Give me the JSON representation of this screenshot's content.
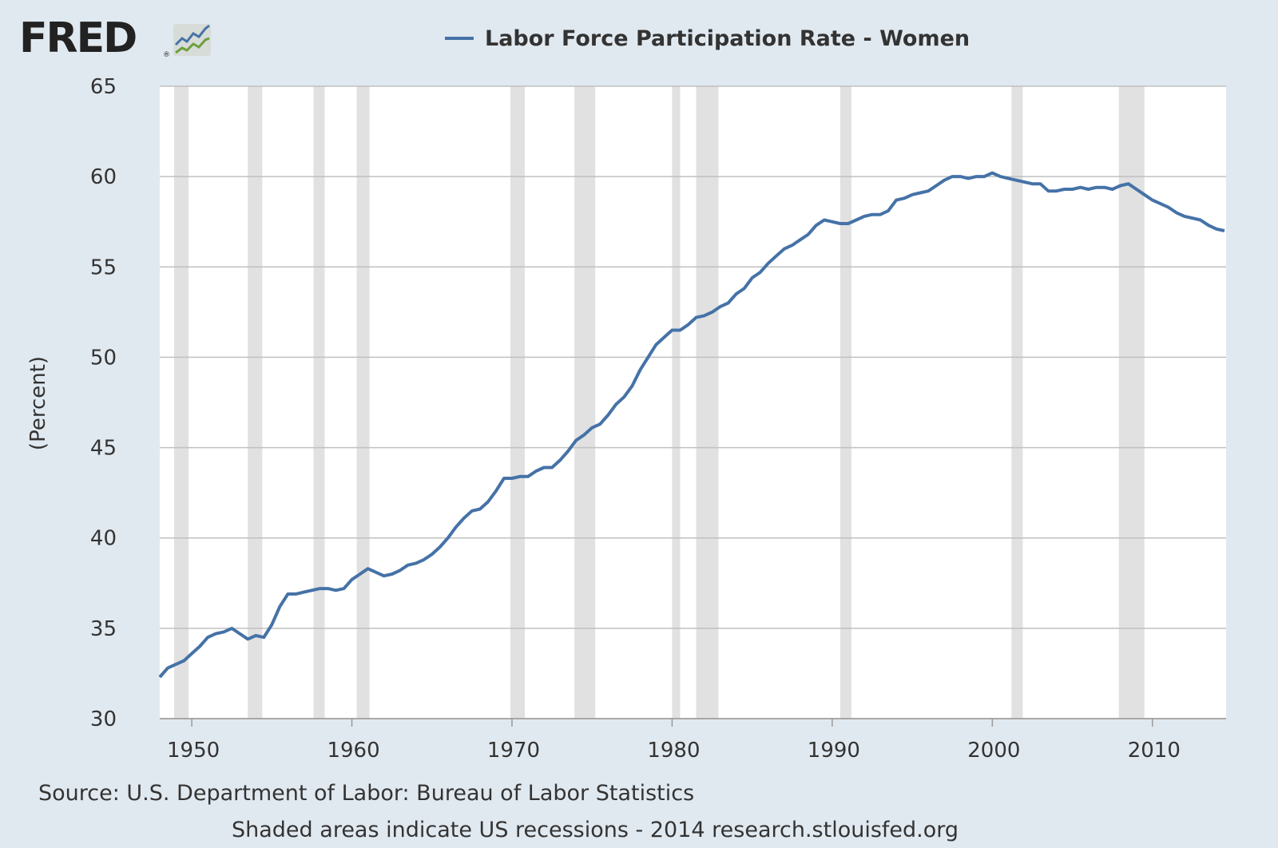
{
  "logo": {
    "text": "FRED",
    "reg": "®"
  },
  "colors": {
    "background": "#e1e9f0",
    "plot_background": "#ffffff",
    "series": "#4572a7",
    "recession": "#e1e1e1",
    "grid": "#c0c0c0",
    "text": "#333333"
  },
  "footer": {
    "source": "Source: U.S. Department of Labor: Bureau of Labor Statistics",
    "note": "Shaded areas indicate US recessions - 2014 research.stlouisfed.org"
  },
  "chart_data": {
    "type": "line",
    "title": "",
    "xlabel": "",
    "ylabel": "(Percent)",
    "xlim": [
      1948.0,
      2014.6
    ],
    "ylim": [
      30,
      65
    ],
    "y_ticks": [
      "30",
      "35",
      "40",
      "45",
      "50",
      "55",
      "60",
      "65"
    ],
    "x_ticks": [
      "1950",
      "1960",
      "1970",
      "1980",
      "1990",
      "2000",
      "2010"
    ],
    "grid": true,
    "legend_placement": "top-center",
    "recessions": [
      [
        1948.9,
        1949.8
      ],
      [
        1953.5,
        1954.4
      ],
      [
        1957.6,
        1958.3
      ],
      [
        1960.3,
        1961.1
      ],
      [
        1969.9,
        1970.8
      ],
      [
        1973.9,
        1975.2
      ],
      [
        1980.0,
        1980.5
      ],
      [
        1981.5,
        1982.9
      ],
      [
        1990.5,
        1991.2
      ],
      [
        2001.2,
        2001.9
      ],
      [
        2007.9,
        2009.5
      ]
    ],
    "series": [
      {
        "name": "Labor Force Participation Rate - Women",
        "x": [
          1948.0,
          1948.5,
          1949.0,
          1949.5,
          1950.0,
          1950.5,
          1951.0,
          1951.5,
          1952.0,
          1952.5,
          1953.0,
          1953.5,
          1954.0,
          1954.5,
          1955.0,
          1955.5,
          1956.0,
          1956.5,
          1957.0,
          1957.5,
          1958.0,
          1958.5,
          1959.0,
          1959.5,
          1960.0,
          1960.5,
          1961.0,
          1961.5,
          1962.0,
          1962.5,
          1963.0,
          1963.5,
          1964.0,
          1964.5,
          1965.0,
          1965.5,
          1966.0,
          1966.5,
          1967.0,
          1967.5,
          1968.0,
          1968.5,
          1969.0,
          1969.5,
          1970.0,
          1970.5,
          1971.0,
          1971.5,
          1972.0,
          1972.5,
          1973.0,
          1973.5,
          1974.0,
          1974.5,
          1975.0,
          1975.5,
          1976.0,
          1976.5,
          1977.0,
          1977.5,
          1978.0,
          1978.5,
          1979.0,
          1979.5,
          1980.0,
          1980.5,
          1981.0,
          1981.5,
          1982.0,
          1982.5,
          1983.0,
          1983.5,
          1984.0,
          1984.5,
          1985.0,
          1985.5,
          1986.0,
          1986.5,
          1987.0,
          1987.5,
          1988.0,
          1988.5,
          1989.0,
          1989.5,
          1990.0,
          1990.5,
          1991.0,
          1991.5,
          1992.0,
          1992.5,
          1993.0,
          1993.5,
          1994.0,
          1994.5,
          1995.0,
          1995.5,
          1996.0,
          1996.5,
          1997.0,
          1997.5,
          1998.0,
          1998.5,
          1999.0,
          1999.5,
          2000.0,
          2000.5,
          2001.0,
          2001.5,
          2002.0,
          2002.5,
          2003.0,
          2003.5,
          2004.0,
          2004.5,
          2005.0,
          2005.5,
          2006.0,
          2006.5,
          2007.0,
          2007.5,
          2008.0,
          2008.5,
          2009.0,
          2009.5,
          2010.0,
          2010.5,
          2011.0,
          2011.5,
          2012.0,
          2012.5,
          2013.0,
          2013.5,
          2014.0,
          2014.5
        ],
        "values": [
          32.3,
          32.8,
          33.0,
          33.2,
          33.6,
          34.0,
          34.5,
          34.7,
          34.8,
          35.0,
          34.7,
          34.4,
          34.6,
          34.5,
          35.2,
          36.2,
          36.9,
          36.9,
          37.0,
          37.1,
          37.2,
          37.2,
          37.1,
          37.2,
          37.7,
          38.0,
          38.3,
          38.1,
          37.9,
          38.0,
          38.2,
          38.5,
          38.6,
          38.8,
          39.1,
          39.5,
          40.0,
          40.6,
          41.1,
          41.5,
          41.6,
          42.0,
          42.6,
          43.3,
          43.3,
          43.4,
          43.4,
          43.7,
          43.9,
          43.9,
          44.3,
          44.8,
          45.4,
          45.7,
          46.1,
          46.3,
          46.8,
          47.4,
          47.8,
          48.4,
          49.3,
          50.0,
          50.7,
          51.1,
          51.5,
          51.5,
          51.8,
          52.2,
          52.3,
          52.5,
          52.8,
          53.0,
          53.5,
          53.8,
          54.4,
          54.7,
          55.2,
          55.6,
          56.0,
          56.2,
          56.5,
          56.8,
          57.3,
          57.6,
          57.5,
          57.4,
          57.4,
          57.6,
          57.8,
          57.9,
          57.9,
          58.1,
          58.7,
          58.8,
          59.0,
          59.1,
          59.2,
          59.5,
          59.8,
          60.0,
          60.0,
          59.9,
          60.0,
          60.0,
          60.2,
          60.0,
          59.9,
          59.8,
          59.7,
          59.6,
          59.6,
          59.2,
          59.2,
          59.3,
          59.3,
          59.4,
          59.3,
          59.4,
          59.4,
          59.3,
          59.5,
          59.6,
          59.3,
          59.0,
          58.7,
          58.5,
          58.3,
          58.0,
          57.8,
          57.7,
          57.6,
          57.3,
          57.1,
          57.0
        ]
      }
    ]
  }
}
